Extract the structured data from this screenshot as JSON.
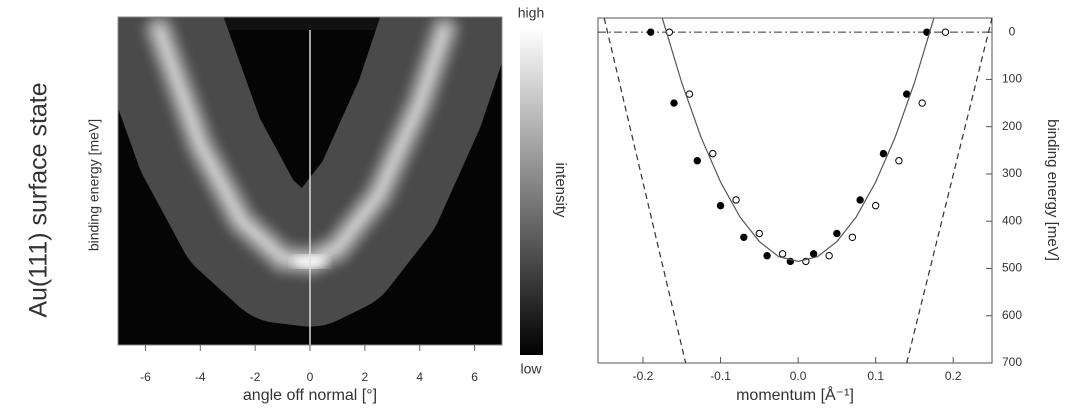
{
  "figure": {
    "title": "Au(111) surface state"
  },
  "chart_data": [
    {
      "type": "heatmap",
      "xlabel": "angle off normal [°]",
      "ylabel": "binding energy [meV]",
      "xlim": [
        -7,
        7
      ],
      "xticks": [
        -6,
        -4,
        -2,
        0,
        2,
        4,
        6
      ],
      "ylim": [
        0,
        650
      ],
      "xline": 0,
      "series": [
        {
          "x": [
            -5.5,
            -4,
            -2.5,
            -1,
            0,
            1,
            2.5,
            4,
            4.9
          ],
          "values": [
            0,
            237,
            394,
            471,
            478,
            450,
            341,
            152,
            0
          ],
          "color": "#d8d8d8"
        }
      ],
      "colorbar": {
        "high": "high",
        "low": "low",
        "label": "intensity"
      }
    },
    {
      "type": "scatter",
      "xlabel": "momentum [Å⁻¹]",
      "ylabel": "binding energy [meV]",
      "xlim": [
        -0.258,
        0.25
      ],
      "xticks": [
        -0.2,
        -0.1,
        {
          "value": 0,
          "label": "0.0"
        },
        0.1,
        0.2
      ],
      "ylim": [
        -30,
        700
      ],
      "yticks": [
        0,
        100,
        200,
        300,
        400,
        500,
        600,
        700
      ],
      "y_inverted": true,
      "hline": 0,
      "series": [
        {
          "style": "filled-circle",
          "color": "#000000",
          "x": [
            -0.19,
            -0.16,
            -0.13,
            -0.1,
            -0.07,
            -0.04,
            -0.01,
            0.02,
            0.05,
            0.08,
            0.11,
            0.14,
            0.166
          ],
          "values": [
            0,
            150,
            272,
            367,
            434,
            473,
            485,
            469,
            426,
            355,
            257,
            131,
            0
          ]
        },
        {
          "style": "open-circle",
          "color": "#000000",
          "x": [
            -0.166,
            -0.14,
            -0.11,
            -0.08,
            -0.05,
            -0.02,
            0.01,
            0.04,
            0.07,
            0.1,
            0.13,
            0.16,
            0.19
          ],
          "values": [
            0,
            131,
            257,
            355,
            426,
            469,
            485,
            473,
            434,
            367,
            272,
            150,
            0
          ]
        },
        {
          "style": "line",
          "color": "#555555",
          "x": [
            -0.175,
            -0.15,
            -0.125,
            -0.1,
            -0.075,
            -0.05,
            -0.025,
            0,
            0.025,
            0.05,
            0.075,
            0.1,
            0.125,
            0.15,
            0.175
          ],
          "values": [
            -29,
            107,
            223,
            317,
            391,
            443,
            475,
            485,
            475,
            443,
            391,
            317,
            223,
            107,
            -29
          ]
        },
        {
          "style": "dashed",
          "color": "#333333",
          "x": [
            -0.25,
            -0.145
          ],
          "values": [
            -30,
            700
          ]
        },
        {
          "style": "dashed",
          "color": "#333333",
          "x": [
            0.14,
            0.25
          ],
          "values": [
            700,
            -30
          ]
        }
      ]
    }
  ]
}
